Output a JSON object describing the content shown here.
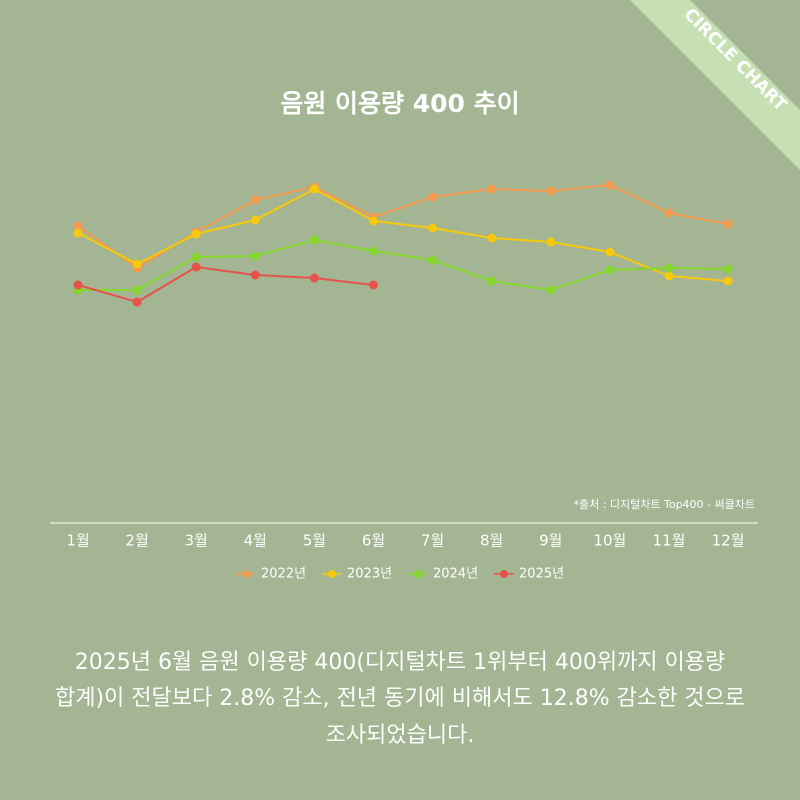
{
  "brand": "CIRCLE CHART",
  "chart_data": {
    "type": "line",
    "title": "음원 이용량 400 추이",
    "source": "*출처 : 디지털차트 Top400 - 써클차트",
    "categories": [
      "1월",
      "2월",
      "3월",
      "4월",
      "5월",
      "6월",
      "7월",
      "8월",
      "9월",
      "10월",
      "11월",
      "12월"
    ],
    "ylim": [
      0,
      400
    ],
    "series": [
      {
        "name": "2022년",
        "color": "#f29a4e",
        "values": [
          294,
          252,
          288,
          320,
          333,
          303,
          323,
          331,
          329,
          335,
          307,
          296
        ]
      },
      {
        "name": "2023년",
        "color": "#f7c90a",
        "values": [
          287,
          256,
          286,
          300,
          331,
          299,
          292,
          282,
          278,
          268,
          244,
          239
        ]
      },
      {
        "name": "2024년",
        "color": "#84d62b",
        "values": [
          230,
          230,
          263,
          264,
          280,
          269,
          260,
          239,
          230,
          250,
          252,
          251
        ]
      },
      {
        "name": "2025년",
        "color": "#e5534b",
        "values": [
          235,
          218,
          253,
          245,
          242,
          235,
          null,
          null,
          null,
          null,
          null,
          null
        ]
      }
    ]
  },
  "caption": [
    "2025년 6월 음원 이용량 400(디지털차트 1위부터 400위까지 이용량",
    "합계)이 전달보다 2.8% 감소, 전년 동기에 비해서도 12.8% 감소한 것으로",
    "조사되었습니다."
  ]
}
